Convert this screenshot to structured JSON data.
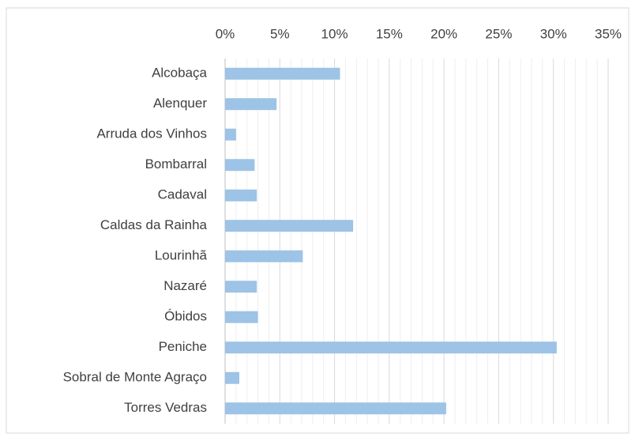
{
  "chart_data": {
    "type": "hbar",
    "categories": [
      "Alcobaça",
      "Alenquer",
      "Arruda dos Vinhos",
      "Bombarral",
      "Cadaval",
      "Caldas da Rainha",
      "Lourinhã",
      "Nazaré",
      "Óbidos",
      "Peniche",
      "Sobral de Monte Agraço",
      "Torres Vedras"
    ],
    "values": [
      10.5,
      4.7,
      1.0,
      2.7,
      2.9,
      11.7,
      7.1,
      2.9,
      3.0,
      30.3,
      1.3,
      20.2
    ],
    "color": "#9dc3e6",
    "xlim": [
      0,
      35
    ],
    "xticks": [
      {
        "value": 0,
        "label": "0%"
      },
      {
        "value": 5,
        "label": "5%"
      },
      {
        "value": 10,
        "label": "10%"
      },
      {
        "value": 15,
        "label": "15%"
      },
      {
        "value": 20,
        "label": "20%"
      },
      {
        "value": 25,
        "label": "25%"
      },
      {
        "value": 30,
        "label": "30%"
      },
      {
        "value": 35,
        "label": "35%"
      }
    ],
    "grid": true,
    "minor_grid": true
  }
}
